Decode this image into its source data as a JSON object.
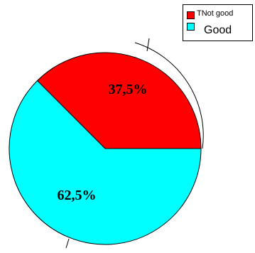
{
  "chart_data": {
    "type": "pie",
    "slices": [
      {
        "label": "TNot good",
        "value": 37.5,
        "data_label": "37,5%",
        "color": "#ff0000"
      },
      {
        "label": "Good",
        "value": 62.5,
        "data_label": "62,5%",
        "color": "#00ffff"
      }
    ],
    "legend": {
      "position": "top-right",
      "entries": [
        "TNot good",
        "Good"
      ]
    },
    "outline_color": "#000000",
    "start_angle_deg": 0,
    "direction": "counterclockwise"
  }
}
